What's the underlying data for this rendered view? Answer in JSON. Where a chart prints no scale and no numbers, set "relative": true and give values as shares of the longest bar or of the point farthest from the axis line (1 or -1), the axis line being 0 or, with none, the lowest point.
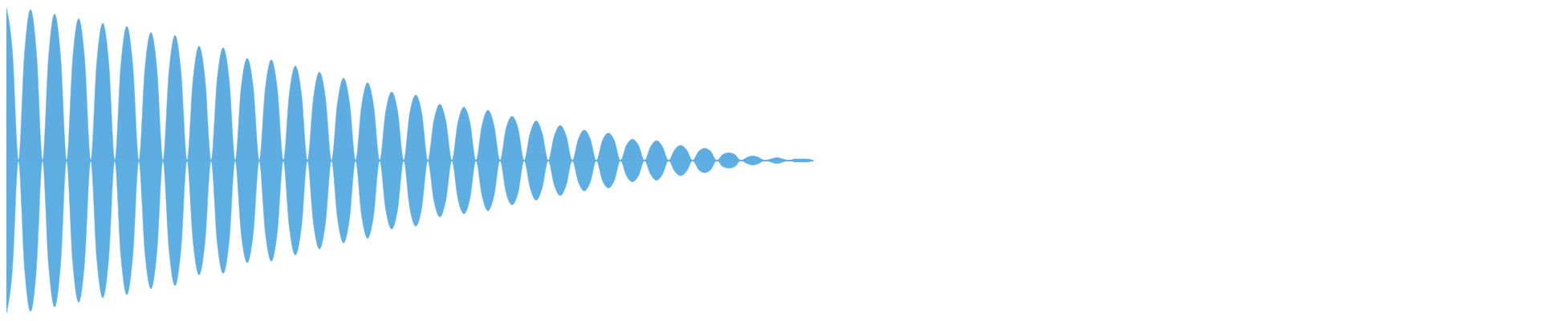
{
  "chart_data": {
    "type": "area",
    "relative": true,
    "categories": [
      null,
      null,
      null,
      null,
      null,
      null,
      null,
      null,
      null,
      null,
      null,
      null,
      null,
      null,
      null,
      null,
      null,
      null,
      null,
      null,
      null,
      null,
      null,
      null,
      null,
      null,
      null,
      null,
      null,
      null,
      null,
      null,
      null,
      null,
      null,
      null,
      null,
      null,
      null,
      null,
      null,
      null,
      null,
      null,
      null,
      null,
      null,
      null,
      null,
      null,
      null,
      null,
      null,
      null,
      null,
      null,
      null,
      null,
      null,
      null,
      null,
      null,
      null,
      null,
      null,
      null,
      null,
      null,
      null,
      null,
      null,
      null,
      null,
      null,
      null,
      null,
      null,
      null,
      null,
      null,
      null,
      null,
      null,
      null,
      null,
      null,
      null,
      null,
      null,
      null,
      null,
      null,
      null,
      null,
      null,
      null,
      null,
      null,
      null,
      null,
      null,
      null,
      null,
      null,
      null,
      null,
      null,
      null,
      null,
      null,
      null,
      null,
      null,
      null,
      null,
      null,
      null,
      null,
      null,
      null,
      null,
      null,
      null,
      null,
      null,
      null,
      null,
      null,
      null,
      null,
      null,
      null,
      null,
      null,
      null
    ],
    "series": [
      {
        "color": "#5dade2",
        "values": [
          1,
          0.71,
          0,
          0.7,
          0.99,
          0.7,
          0,
          0.68,
          0.96,
          0.68,
          0,
          0.66,
          0.93,
          0.66,
          0,
          0.64,
          0.9,
          0.64,
          0,
          0.62,
          0.88,
          0.62,
          0,
          0.6,
          0.84,
          0.6,
          0,
          0.58,
          0.82,
          0.58,
          0,
          0.53,
          0.75,
          0.53,
          0,
          0.53,
          0.74,
          0.53,
          0,
          0.48,
          0.67,
          0.48,
          0,
          0.47,
          0.66,
          0.47,
          0,
          0.44,
          0.62,
          0.44,
          0,
          0.41,
          0.58,
          0.41,
          0,
          0.38,
          0.54,
          0.38,
          0,
          0.36,
          0.51,
          0.36,
          0,
          0.32,
          0.45,
          0.32,
          0,
          0.31,
          0.43,
          0.31,
          0,
          0.26,
          0.37,
          0.26,
          0,
          0.25,
          0.35,
          0.25,
          0,
          0.23,
          0.33,
          0.23,
          0,
          0.21,
          0.29,
          0.21,
          0,
          0.18,
          0.26,
          0.18,
          0,
          0.16,
          0.23,
          0.16,
          0,
          0.14,
          0.2,
          0.14,
          0,
          0.13,
          0.18,
          0.13,
          0,
          0.1,
          0.14,
          0.1,
          0,
          0.09,
          0.13,
          0.09,
          0,
          0.07,
          0.1,
          0.07,
          0,
          0.06,
          0.08,
          0.06,
          0,
          0.04,
          0.05,
          0.04,
          0,
          0.02,
          0.03,
          0.02,
          0,
          0.01,
          0.02,
          0.01,
          0,
          0.01,
          0.01,
          0.01,
          0
        ]
      },
      {
        "color": "#5caee3",
        "values": [
          -1,
          -0.71,
          0,
          -0.7,
          -0.99,
          -0.7,
          0,
          -0.68,
          -0.96,
          -0.68,
          0,
          -0.66,
          -0.93,
          -0.66,
          0,
          -0.64,
          -0.9,
          -0.64,
          0,
          -0.62,
          -0.88,
          -0.62,
          0,
          -0.6,
          -0.84,
          -0.6,
          0,
          -0.58,
          -0.82,
          -0.58,
          0,
          -0.53,
          -0.75,
          -0.53,
          0,
          -0.53,
          -0.74,
          -0.53,
          0,
          -0.48,
          -0.67,
          -0.48,
          0,
          -0.47,
          -0.66,
          -0.47,
          0,
          -0.44,
          -0.62,
          -0.44,
          0,
          -0.41,
          -0.58,
          -0.41,
          0,
          -0.38,
          -0.54,
          -0.38,
          0,
          -0.36,
          -0.51,
          -0.36,
          0,
          -0.32,
          -0.45,
          -0.32,
          0,
          -0.31,
          -0.43,
          -0.31,
          0,
          -0.26,
          -0.37,
          -0.26,
          0,
          -0.25,
          -0.35,
          -0.25,
          0,
          -0.23,
          -0.33,
          -0.23,
          0,
          -0.21,
          -0.29,
          -0.21,
          0,
          -0.18,
          -0.26,
          -0.18,
          0,
          -0.16,
          -0.23,
          -0.16,
          0,
          -0.14,
          -0.2,
          -0.14,
          0,
          -0.13,
          -0.18,
          -0.13,
          0,
          -0.1,
          -0.14,
          -0.1,
          0,
          -0.09,
          -0.13,
          -0.09,
          0,
          -0.07,
          -0.1,
          -0.07,
          0,
          -0.06,
          -0.08,
          -0.06,
          0,
          -0.04,
          -0.05,
          -0.04,
          0,
          -0.02,
          -0.03,
          -0.02,
          0,
          -0.01,
          -0.02,
          -0.01,
          0,
          -0.01,
          -0.01,
          -0.01,
          0
        ]
      }
    ]
  }
}
